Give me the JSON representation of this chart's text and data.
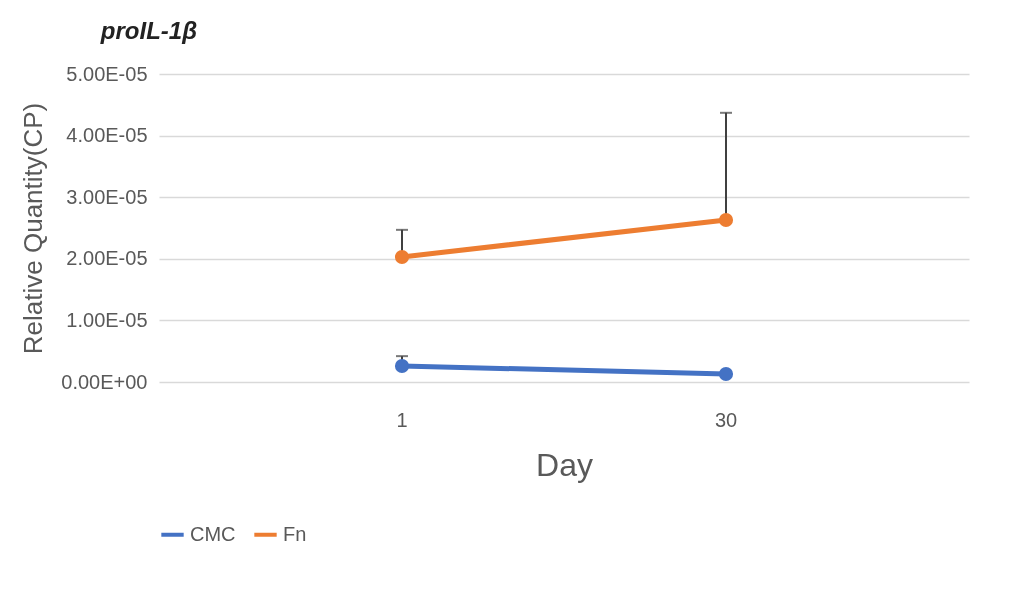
{
  "chart_data": {
    "type": "line",
    "title": "proIL-1β",
    "xlabel": "Day",
    "ylabel": "Relative Quantity(CP)",
    "categories": [
      "1",
      "30"
    ],
    "series": [
      {
        "name": "CMC",
        "color": "#4472c4",
        "values": [
          2.6e-06,
          1.3e-06
        ],
        "errors": [
          [
            2.6e-06,
            4.2e-06
          ],
          null
        ]
      },
      {
        "name": "Fn",
        "color": "#ed7d31",
        "values": [
          2.03e-05,
          2.63e-05
        ],
        "errors": [
          [
            2.03e-05,
            2.47e-05
          ],
          [
            2.63e-05,
            4.37e-05
          ]
        ]
      }
    ],
    "ylim": [
      0,
      5e-05
    ],
    "yticks": [
      {
        "value": 0,
        "label": "0.00E+00"
      },
      {
        "value": 1e-05,
        "label": "1.00E-05"
      },
      {
        "value": 2e-05,
        "label": "2.00E-05"
      },
      {
        "value": 3e-05,
        "label": "3.00E-05"
      },
      {
        "value": 4e-05,
        "label": "4.00E-05"
      },
      {
        "value": 5e-05,
        "label": "5.00E-05"
      }
    ],
    "grid": "y",
    "legend": "bottom",
    "marker": "circle",
    "line_style": "solid"
  }
}
